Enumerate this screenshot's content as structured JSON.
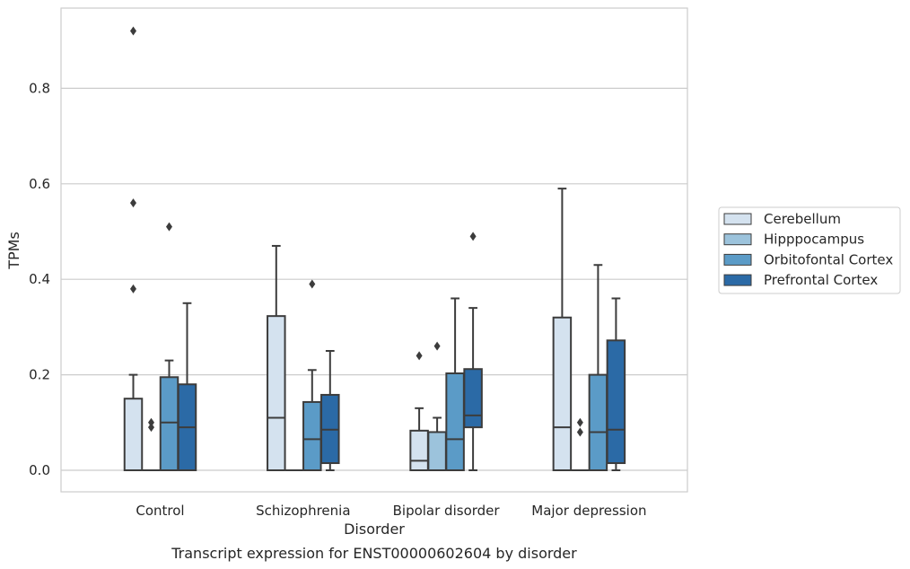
{
  "chart_data": {
    "type": "box",
    "title": "Transcript expression for ENST00000602604 by disorder",
    "xlabel": "Disorder",
    "ylabel": "TPMs",
    "ylim": [
      -0.045,
      0.97
    ],
    "yticks": [
      0.0,
      0.2,
      0.4,
      0.6,
      0.8
    ],
    "ytick_labels": [
      "0.0",
      "0.2",
      "0.4",
      "0.6",
      "0.8"
    ],
    "grid": "horizontal",
    "legend_position": "right",
    "categories": [
      "Control",
      "Schizophrenia",
      "Bipolar disorder",
      "Major depression"
    ],
    "series": [
      {
        "name": "Cerebellum",
        "color": "#d4e2ef",
        "boxes": [
          {
            "q1": 0.0,
            "median": 0.0,
            "q3": 0.15,
            "whisker_low": 0.0,
            "whisker_high": 0.2,
            "outliers": [
              0.38,
              0.56,
              0.92
            ]
          },
          {
            "q1": 0.0,
            "median": 0.11,
            "q3": 0.323,
            "whisker_low": 0.0,
            "whisker_high": 0.47,
            "outliers": []
          },
          {
            "q1": 0.0,
            "median": 0.02,
            "q3": 0.083,
            "whisker_low": 0.0,
            "whisker_high": 0.13,
            "outliers": [
              0.24
            ]
          },
          {
            "q1": 0.0,
            "median": 0.09,
            "q3": 0.32,
            "whisker_low": 0.0,
            "whisker_high": 0.59,
            "outliers": []
          }
        ]
      },
      {
        "name": "Hipppocampus",
        "color": "#9cc3dc",
        "boxes": [
          {
            "q1": 0.0,
            "median": 0.0,
            "q3": 0.0,
            "whisker_low": 0.0,
            "whisker_high": 0.0,
            "outliers": [
              0.09,
              0.1
            ]
          },
          {
            "q1": 0.0,
            "median": 0.0,
            "q3": 0.0,
            "whisker_low": 0.0,
            "whisker_high": 0.0,
            "outliers": []
          },
          {
            "q1": 0.0,
            "median": 0.0,
            "q3": 0.08,
            "whisker_low": 0.0,
            "whisker_high": 0.11,
            "outliers": [
              0.26
            ]
          },
          {
            "q1": 0.0,
            "median": 0.0,
            "q3": 0.0,
            "whisker_low": 0.0,
            "whisker_high": 0.0,
            "outliers": [
              0.08,
              0.1
            ]
          }
        ]
      },
      {
        "name": "Orbitofontal Cortex",
        "color": "#5b9bc7",
        "boxes": [
          {
            "q1": 0.0,
            "median": 0.1,
            "q3": 0.195,
            "whisker_low": 0.0,
            "whisker_high": 0.23,
            "outliers": [
              0.51
            ]
          },
          {
            "q1": 0.0,
            "median": 0.065,
            "q3": 0.143,
            "whisker_low": 0.0,
            "whisker_high": 0.21,
            "outliers": [
              0.39
            ]
          },
          {
            "q1": 0.0,
            "median": 0.065,
            "q3": 0.203,
            "whisker_low": 0.0,
            "whisker_high": 0.36,
            "outliers": []
          },
          {
            "q1": 0.0,
            "median": 0.08,
            "q3": 0.2,
            "whisker_low": 0.0,
            "whisker_high": 0.43,
            "outliers": []
          }
        ]
      },
      {
        "name": "Prefrontal Cortex",
        "color": "#2b6aa6",
        "boxes": [
          {
            "q1": 0.0,
            "median": 0.09,
            "q3": 0.18,
            "whisker_low": 0.0,
            "whisker_high": 0.35,
            "outliers": []
          },
          {
            "q1": 0.015,
            "median": 0.085,
            "q3": 0.158,
            "whisker_low": 0.0,
            "whisker_high": 0.25,
            "outliers": []
          },
          {
            "q1": 0.09,
            "median": 0.115,
            "q3": 0.212,
            "whisker_low": 0.0,
            "whisker_high": 0.34,
            "outliers": [
              0.49
            ]
          },
          {
            "q1": 0.015,
            "median": 0.085,
            "q3": 0.272,
            "whisker_low": 0.0,
            "whisker_high": 0.36,
            "outliers": []
          }
        ]
      }
    ]
  }
}
